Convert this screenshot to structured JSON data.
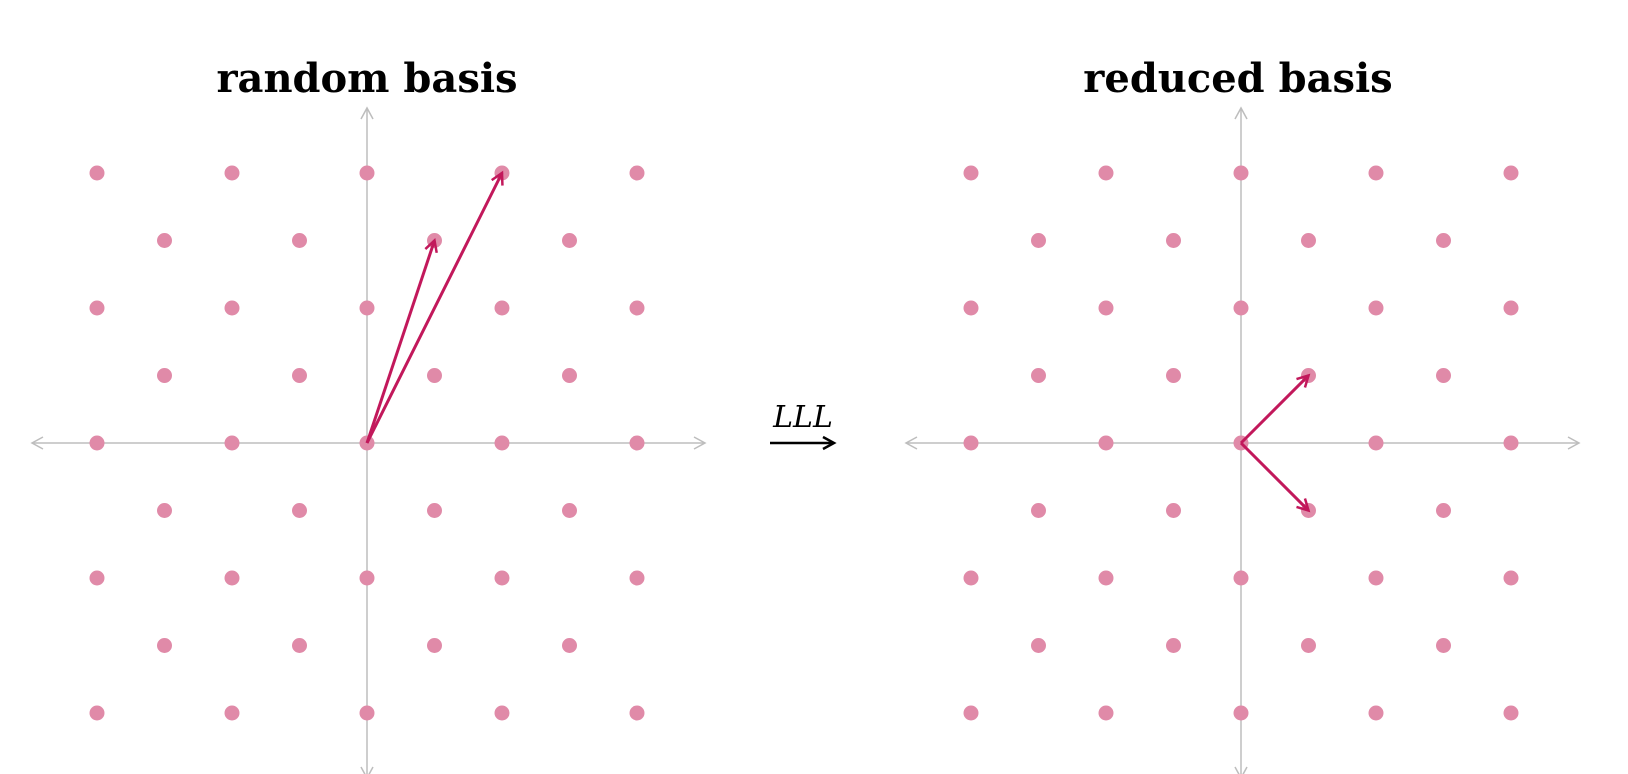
{
  "panels": [
    {
      "title": "random basis",
      "basis_vectors": [
        [
          1,
          3
        ],
        [
          2,
          4
        ]
      ]
    },
    {
      "title": "reduced basis",
      "basis_vectors": [
        [
          1,
          1
        ],
        [
          1,
          -1
        ]
      ]
    }
  ],
  "transform_label": "LLL",
  "lattice": {
    "x_range": [
      -2,
      2
    ],
    "y_range": [
      -2,
      2
    ],
    "step": 0.5
  },
  "colors": {
    "point": "#e08aa8",
    "vector": "#c2185b",
    "axis": "#bdbdbd",
    "arrow": "#000000"
  }
}
